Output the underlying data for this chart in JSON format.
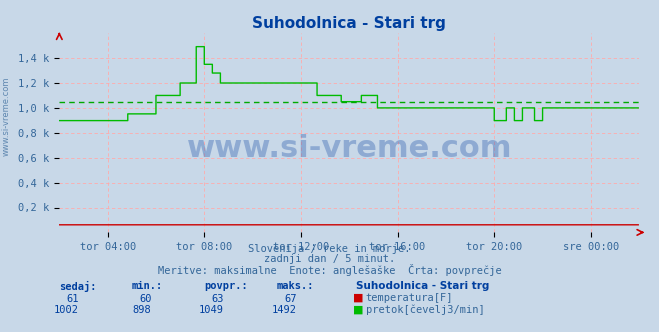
{
  "title": "Suhodolnica - Stari trg",
  "title_color": "#003f9f",
  "bg_color": "#c8d8e8",
  "plot_bg_color": "#c8d8e8",
  "grid_color": "#ffaaaa",
  "ylim": [
    0,
    1600
  ],
  "yticks": [
    200,
    400,
    600,
    800,
    1000,
    1200,
    1400
  ],
  "ytick_labels": [
    "0,2 k",
    "0,4 k",
    "0,6 k",
    "0,8 k",
    "1,0 k",
    "1,2 k",
    "1,4 k"
  ],
  "xtick_labels": [
    "tor 04:00",
    "tor 08:00",
    "tor 12:00",
    "tor 16:00",
    "tor 20:00",
    "sre 00:00"
  ],
  "xtick_positions": [
    48,
    144,
    240,
    336,
    432,
    528
  ],
  "total_points": 576,
  "avg_flow": 1049,
  "avg_temp": 63,
  "flow_color": "#00bb00",
  "temp_color": "#cc0000",
  "avg_line_color": "#00aa00",
  "watermark": "www.si-vreme.com",
  "watermark_color": "#2255aa",
  "sub_text1": "Slovenija / reke in morje.",
  "sub_text2": "zadnji dan / 5 minut.",
  "sub_text3": "Meritve: maksimalne  Enote: anglešaške  Črta: povprečje",
  "sub_text_color": "#336699",
  "legend_title": "Suhodolnica - Stari trg",
  "legend_temp_label": "temperatura[F]",
  "legend_flow_label": "pretok[čevelj3/min]",
  "table_headers": [
    "sedaj:",
    "min.:",
    "povpr.:",
    "maks.:"
  ],
  "table_temp": [
    61,
    60,
    63,
    67
  ],
  "table_flow": [
    1002,
    898,
    1049,
    1492
  ],
  "sidebar_text": "www.si-vreme.com",
  "sidebar_color": "#336699"
}
